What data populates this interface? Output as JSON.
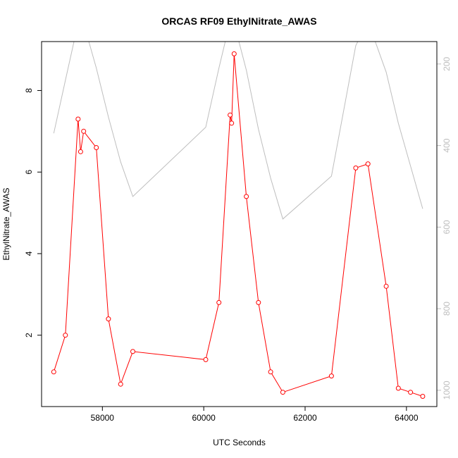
{
  "chart_data": {
    "type": "line",
    "title": "ORCAS RF09 EthylNitrate_AWAS",
    "xlabel": "UTC Seconds",
    "ylabel": "EthylNitrate_AWAS",
    "xlim": [
      56800,
      64600
    ],
    "ylim": [
      0.25,
      9.2
    ],
    "y2lim": [
      1040,
      145
    ],
    "y2_reversed": true,
    "x_ticks": [
      58000,
      60000,
      62000,
      64000
    ],
    "x_tick_labels": [
      "58000",
      "60000",
      "62000",
      "64000"
    ],
    "y_ticks": [
      2,
      4,
      6,
      8
    ],
    "y_tick_labels": [
      "2",
      "4",
      "6",
      "8"
    ],
    "y2_ticks": [
      200,
      400,
      600,
      800,
      1000
    ],
    "y2_tick_labels": [
      "200",
      "400",
      "600",
      "800",
      "1000"
    ],
    "grid": false,
    "series": [
      {
        "role": "primary",
        "color": "#ff0000",
        "marker": "open-circle",
        "x": [
          57040,
          57270,
          57520,
          57570,
          57630,
          57880,
          58120,
          58360,
          58600,
          60040,
          60300,
          60520,
          60550,
          60600,
          60840,
          61080,
          61320,
          61560,
          62520,
          63000,
          63240,
          63600,
          63840,
          64080,
          64320
        ],
        "y": [
          1.1,
          2.0,
          7.3,
          6.5,
          7.0,
          6.6,
          2.4,
          0.8,
          1.6,
          1.4,
          2.8,
          7.4,
          7.2,
          8.9,
          5.4,
          2.8,
          1.1,
          0.6,
          1.0,
          6.1,
          6.2,
          3.2,
          0.7,
          0.6,
          0.5
        ]
      },
      {
        "role": "secondary-axis",
        "color": "#bebebe",
        "marker": "none",
        "x": [
          57040,
          57270,
          57520,
          57570,
          57630,
          57880,
          58120,
          58360,
          58600,
          60040,
          60300,
          60520,
          60550,
          60600,
          60840,
          61080,
          61320,
          61560,
          62520,
          63000,
          63240,
          63600,
          63840,
          64080,
          64320
        ],
        "y2": [
          370,
          240,
          100,
          80,
          100,
          210,
          330,
          440,
          525,
          355,
          210,
          95,
          90,
          100,
          215,
          360,
          480,
          580,
          475,
          155,
          95,
          220,
          345,
          450,
          555
        ]
      }
    ]
  }
}
